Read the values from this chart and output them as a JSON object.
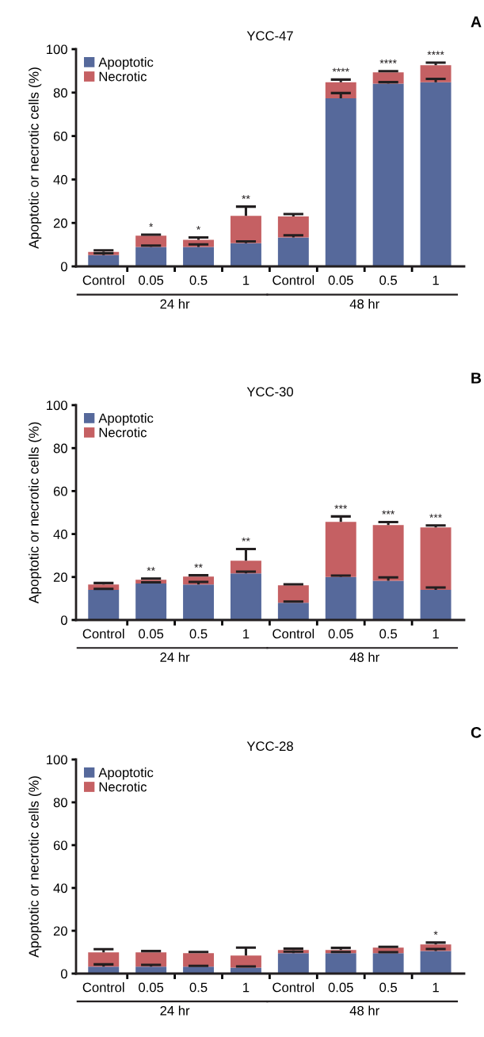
{
  "chart_data": [
    {
      "type": "bar",
      "title": "YCC-47",
      "ylabel": "Apoptotic or necrotic cells (%)",
      "categories": [
        "Control",
        "0.05",
        "0.5",
        "1",
        "Control",
        "0.05",
        "0.5",
        "1"
      ],
      "stacked": true,
      "ylim": [
        0,
        100
      ],
      "yticks": [
        0,
        20,
        40,
        60,
        80,
        100
      ],
      "grid": false,
      "legend": "top left",
      "annotations": [
        "24 hr",
        "48 hr",
        "A"
      ],
      "series": [
        {
          "name": "Apoptotic",
          "color": "#56699b",
          "values": [
            5.2,
            8.9,
            8.9,
            10.7,
            13.3,
            77.4,
            84.1,
            84.8
          ],
          "errors": [
            [
              5.2,
              6.0
            ],
            [
              8.9,
              9.6
            ],
            [
              8.9,
              10.1
            ],
            [
              10.7,
              11.5
            ],
            [
              13.3,
              14.3
            ],
            [
              77.4,
              79.8
            ],
            [
              84.1,
              84.8
            ],
            [
              84.8,
              86.3
            ]
          ]
        },
        {
          "name": "Necrotic",
          "color": "#c56063",
          "values": [
            1.5,
            5.2,
            3.3,
            12.6,
            9.7,
            7.4,
            5.2,
            7.8
          ],
          "errors": [
            [
              6.7,
              7.4
            ],
            [
              14.1,
              14.6
            ],
            [
              12.2,
              13.3
            ],
            [
              23.3,
              27.5
            ],
            [
              23.0,
              24.1
            ],
            [
              84.8,
              86.0
            ],
            [
              89.3,
              89.9
            ],
            [
              92.6,
              93.8
            ]
          ],
          "value_labels": [
            null,
            "*",
            "*",
            "**",
            null,
            "****",
            "****",
            "****"
          ]
        }
      ]
    },
    {
      "type": "bar",
      "title": "YCC-30",
      "ylabel": "Apoptotic or necrotic cells (%)",
      "categories": [
        "Control",
        "0.05",
        "0.5",
        "1",
        "Control",
        "0.05",
        "0.5",
        "1"
      ],
      "stacked": true,
      "ylim": [
        0,
        100
      ],
      "yticks": [
        0,
        20,
        40,
        60,
        80,
        100
      ],
      "grid": false,
      "legend": "top left",
      "annotations": [
        "24 hr",
        "48 hr",
        "B"
      ],
      "series": [
        {
          "name": "Apoptotic",
          "color": "#56699b",
          "values": [
            14.0,
            17.0,
            16.5,
            21.7,
            8.0,
            20.0,
            18.3,
            14.0
          ],
          "errors": [
            [
              14.0,
              14.5
            ],
            [
              17.0,
              17.5
            ],
            [
              16.5,
              17.7
            ],
            [
              21.7,
              22.5
            ],
            [
              8.0,
              8.6
            ],
            [
              20.0,
              20.7
            ],
            [
              18.3,
              19.8
            ],
            [
              14.0,
              15.1
            ]
          ]
        },
        {
          "name": "Necrotic",
          "color": "#c56063",
          "values": [
            2.5,
            1.7,
            3.7,
            5.9,
            8.1,
            25.7,
            25.9,
            29.1
          ],
          "errors": [
            [
              16.5,
              17.2
            ],
            [
              18.7,
              19.3
            ],
            [
              20.2,
              20.8
            ],
            [
              27.6,
              33.0
            ],
            [
              16.1,
              16.6
            ],
            [
              45.7,
              48.2
            ],
            [
              44.2,
              45.6
            ],
            [
              43.1,
              44.0
            ]
          ],
          "value_labels": [
            null,
            "**",
            "**",
            "**",
            null,
            "***",
            "***",
            "***"
          ]
        }
      ]
    },
    {
      "type": "bar",
      "title": "YCC-28",
      "ylabel": "Apoptotic or necrotic cells (%)",
      "categories": [
        "Control",
        "0.05",
        "0.5",
        "1",
        "Control",
        "0.05",
        "0.5",
        "1"
      ],
      "stacked": true,
      "ylim": [
        0,
        100
      ],
      "yticks": [
        0,
        20,
        40,
        60,
        80,
        100
      ],
      "grid": false,
      "legend": "top left",
      "annotations": [
        "24 hr",
        "48 hr",
        "C"
      ],
      "series": [
        {
          "name": "Apoptotic",
          "color": "#56699b",
          "values": [
            3.2,
            3.2,
            3.2,
            2.8,
            9.5,
            9.5,
            9.5,
            10.6
          ],
          "errors": [
            [
              3.2,
              4.3
            ],
            [
              3.2,
              4.1
            ],
            [
              3.2,
              3.6
            ],
            [
              2.8,
              3.3
            ],
            [
              9.5,
              10.3
            ],
            [
              9.5,
              10.1
            ],
            [
              9.5,
              10.0
            ],
            [
              10.6,
              11.5
            ]
          ]
        },
        {
          "name": "Necrotic",
          "color": "#c56063",
          "values": [
            6.7,
            6.7,
            6.3,
            5.6,
            1.5,
            1.5,
            2.6,
            3.0
          ],
          "errors": [
            [
              9.9,
              11.4
            ],
            [
              9.9,
              10.5
            ],
            [
              9.5,
              10.1
            ],
            [
              8.4,
              12.1
            ],
            [
              11.0,
              11.7
            ],
            [
              11.0,
              12.0
            ],
            [
              12.1,
              12.5
            ],
            [
              13.6,
              14.5
            ]
          ],
          "value_labels": [
            null,
            null,
            null,
            null,
            null,
            null,
            null,
            "*"
          ]
        }
      ]
    }
  ]
}
